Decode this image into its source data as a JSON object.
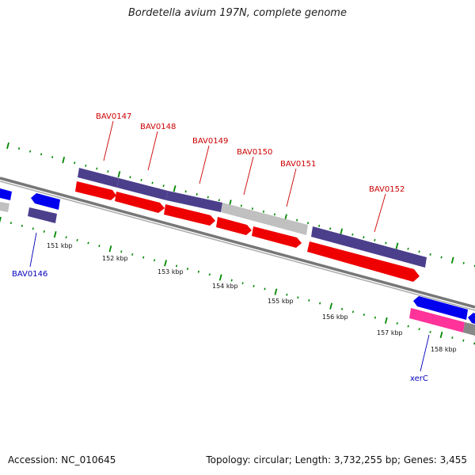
{
  "title": "Bordetella avium 197N, complete genome",
  "footer": {
    "accession": "Accession: NC_010645",
    "summary": "Topology: circular; Length: 3,732,255 bp; Genes: 3,455"
  },
  "colors": {
    "cds": "#ee0000",
    "gene": "#4b3f8c",
    "gene_gray": "#c0c0c0",
    "reverse_cds": "#0000ee",
    "pink": "#ff3399",
    "backbone": "#888888",
    "tick": "#008800",
    "label_red": "#cc0000",
    "label_blue": "#0000bb"
  },
  "genes_top": [
    {
      "name": "BAV0147"
    },
    {
      "name": "BAV0148"
    },
    {
      "name": "BAV0149"
    },
    {
      "name": "BAV0150"
    },
    {
      "name": "BAV0151"
    },
    {
      "name": "BAV0152"
    }
  ],
  "genes_bottom": [
    {
      "name": "BAV0146"
    },
    {
      "name": "xerC"
    }
  ],
  "kbp_ticks": [
    "151 kbp",
    "152 kbp",
    "153 kbp",
    "154 kbp",
    "155 kbp",
    "156 kbp",
    "157 kbp",
    "158 kbp"
  ]
}
